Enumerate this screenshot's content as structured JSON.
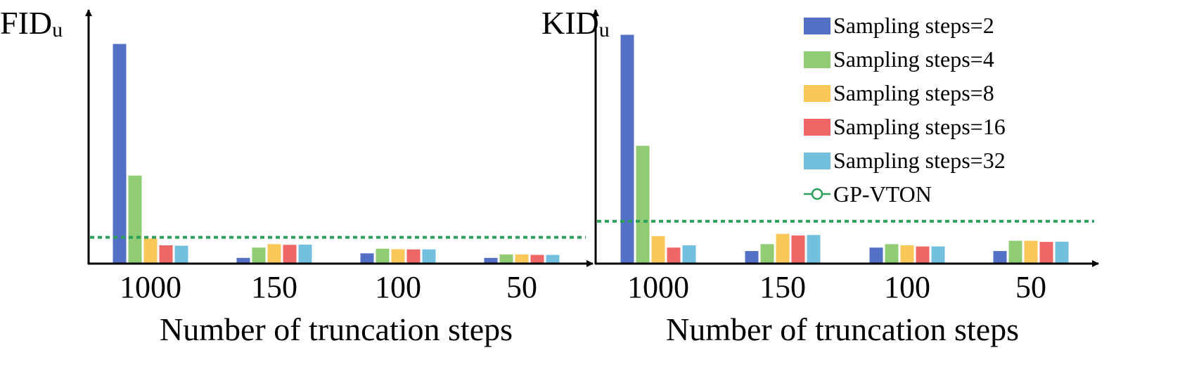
{
  "chart_data": [
    {
      "type": "bar",
      "ylabel": "FID",
      "ylabel_sub": "u",
      "xlabel": "Number of truncation steps",
      "categories": [
        "1000",
        "150",
        "100",
        "50"
      ],
      "series": [
        {
          "name": "Sampling steps=2",
          "values": [
            96,
            2.5,
            4.5,
            2.5
          ]
        },
        {
          "name": "Sampling steps=4",
          "values": [
            38.5,
            7,
            6.5,
            4
          ]
        },
        {
          "name": "Sampling steps=8",
          "values": [
            11,
            8.5,
            6.3,
            4
          ]
        },
        {
          "name": "Sampling steps=16",
          "values": [
            8,
            8.2,
            6.2,
            3.8
          ]
        },
        {
          "name": "Sampling steps=32",
          "values": [
            7.8,
            8.3,
            6.2,
            3.8
          ]
        }
      ],
      "reference": {
        "name": "GP-VTON",
        "value": 11.5
      },
      "ylim": [
        0,
        106
      ],
      "axis_arrows": true,
      "grid": false
    },
    {
      "type": "bar",
      "ylabel": "KID",
      "ylabel_sub": "u",
      "xlabel": "Number of truncation steps",
      "categories": [
        "1000",
        "150",
        "100",
        "50"
      ],
      "series": [
        {
          "name": "Sampling steps=2",
          "values": [
            100,
            5.5,
            7,
            5.5
          ]
        },
        {
          "name": "Sampling steps=4",
          "values": [
            51.5,
            8.5,
            8.5,
            10
          ]
        },
        {
          "name": "Sampling steps=8",
          "values": [
            12,
            13,
            8,
            10
          ]
        },
        {
          "name": "Sampling steps=16",
          "values": [
            7,
            12.3,
            7.5,
            9.5
          ]
        },
        {
          "name": "Sampling steps=32",
          "values": [
            8,
            12.5,
            7.5,
            9.6
          ]
        }
      ],
      "reference": {
        "name": "GP-VTON",
        "value": 18.5
      },
      "ylim": [
        0,
        106
      ],
      "axis_arrows": true,
      "grid": false
    }
  ],
  "legend": {
    "position": "top-right",
    "entries": [
      {
        "label": "Sampling steps=2",
        "color": "#5470C6",
        "kind": "bar"
      },
      {
        "label": "Sampling steps=4",
        "color": "#91CC75",
        "kind": "bar"
      },
      {
        "label": "Sampling steps=8",
        "color": "#FAC858",
        "kind": "bar"
      },
      {
        "label": "Sampling steps=16",
        "color": "#EE6666",
        "kind": "bar"
      },
      {
        "label": "Sampling steps=32",
        "color": "#73C0DE",
        "kind": "bar"
      },
      {
        "label": "GP-VTON",
        "color": "#2E9E5B",
        "kind": "line-marker"
      }
    ]
  },
  "colors": {
    "axis": "#000000",
    "reference_line": "#2E9E5B"
  }
}
